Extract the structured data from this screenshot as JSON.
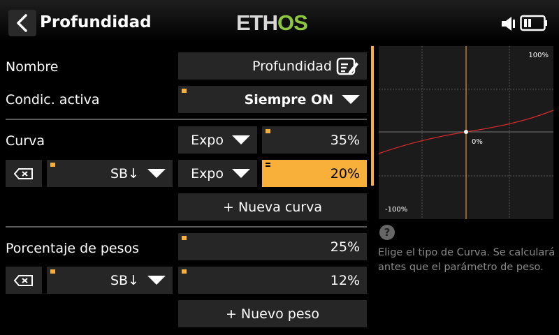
{
  "header": {
    "title": "Profundidad",
    "logo": "ETHOS",
    "back_icon": "chevron-left-icon",
    "speaker_icon": "speaker-icon",
    "battery_icon": "battery-icon"
  },
  "form": {
    "name_label": "Nombre",
    "name_value": "Profundidad",
    "active_condition_label": "Condic. activa",
    "active_condition_value": "Siempre ON",
    "curve_label": "Curva",
    "curve_type": "Expo",
    "curve_value": "35%",
    "curve2_source": "SB↓",
    "curve2_type": "Expo",
    "curve2_value": "20%",
    "new_curve_button": "+ Nueva curva",
    "weight_label": "Porcentaje de pesos",
    "weight_value": "25%",
    "weight2_source": "SB↓",
    "weight2_value": "12%",
    "new_weight_button": "+ Nuevo peso"
  },
  "graph": {
    "top_label": "100%",
    "center_label": "0%",
    "bottom_label": "-100%"
  },
  "help": {
    "icon": "?",
    "text": "Elige el tipo de Curva. Se calculará antes que el parámetro de peso."
  },
  "colors": {
    "accent": "#f8b03a",
    "curve": "#d42a2a",
    "logo_green": "#8dc63f"
  }
}
